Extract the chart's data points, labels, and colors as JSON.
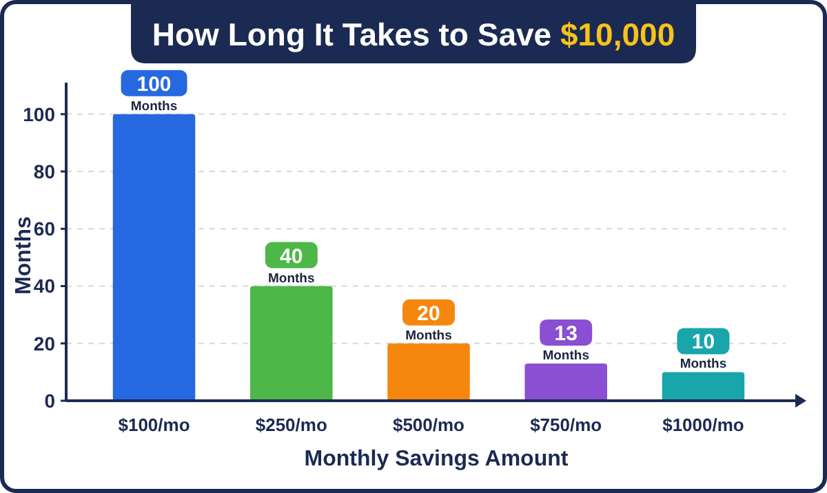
{
  "chart_data": {
    "type": "bar",
    "title": "How Long It Takes to Save $10,000",
    "xlabel": "Monthly Savings Amount",
    "ylabel": "Months",
    "categories": [
      "$100/mo",
      "$250/mo",
      "$500/mo",
      "$750/mo",
      "$1000/mo"
    ],
    "values": [
      100,
      40,
      20,
      13,
      10
    ],
    "colors": [
      "#2668e0",
      "#4db848",
      "#f5870f",
      "#8a4fd3",
      "#19a6aa"
    ],
    "value_labels": [
      "100 Months",
      "40 Months",
      "20 Months",
      "13 Months",
      "10 Months"
    ],
    "ylim": [
      0,
      111
    ],
    "yticks": [
      0,
      20,
      40,
      60,
      80,
      100
    ],
    "grid": "y"
  }
}
